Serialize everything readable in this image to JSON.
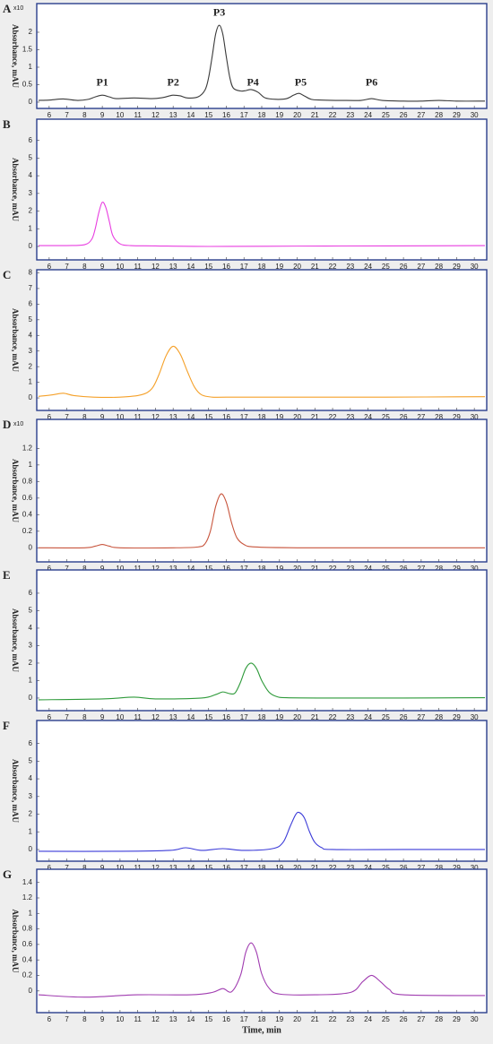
{
  "chart_data": [
    {
      "type": "line",
      "panel": "A",
      "ylabel": "Absorbance, mAU",
      "multiplier": "x10",
      "xlim": [
        5.3,
        30.7
      ],
      "xticks": [
        6,
        7,
        8,
        9,
        10,
        11,
        12,
        13,
        14,
        15,
        16,
        17,
        18,
        19,
        20,
        21,
        22,
        23,
        24,
        25,
        26,
        27,
        28,
        29,
        30
      ],
      "ylim": [
        -0.18,
        2.82
      ],
      "yticks": [
        0,
        0.5,
        1,
        1.5,
        2
      ],
      "annotations": [
        {
          "text": "P1",
          "x": 9.0,
          "y": 0.55
        },
        {
          "text": "P2",
          "x": 13.0,
          "y": 0.55
        },
        {
          "text": "P3",
          "x": 15.6,
          "y": 2.55
        },
        {
          "text": "P4",
          "x": 17.5,
          "y": 0.55
        },
        {
          "text": "P5",
          "x": 20.2,
          "y": 0.55
        },
        {
          "text": "P6",
          "x": 24.2,
          "y": 0.55
        }
      ],
      "series": [
        {
          "color": "#3a3a3a",
          "x": [
            5.4,
            6.0,
            6.8,
            7.6,
            8.2,
            8.6,
            9.0,
            9.4,
            9.8,
            10.8,
            11.8,
            12.4,
            12.8,
            13.0,
            13.4,
            13.8,
            14.4,
            14.8,
            15.0,
            15.2,
            15.4,
            15.6,
            15.8,
            16.0,
            16.2,
            16.4,
            16.8,
            17.1,
            17.4,
            17.8,
            18.2,
            18.8,
            19.4,
            19.8,
            20.1,
            20.4,
            20.8,
            21.4,
            22.5,
            23.6,
            24.2,
            24.8,
            26,
            27,
            28,
            29,
            30.6
          ],
          "values": [
            0.05,
            0.06,
            0.09,
            0.05,
            0.08,
            0.15,
            0.2,
            0.15,
            0.1,
            0.12,
            0.1,
            0.13,
            0.18,
            0.2,
            0.18,
            0.12,
            0.15,
            0.35,
            0.7,
            1.3,
            1.95,
            2.2,
            1.95,
            1.3,
            0.7,
            0.4,
            0.32,
            0.33,
            0.36,
            0.28,
            0.12,
            0.08,
            0.1,
            0.2,
            0.25,
            0.18,
            0.08,
            0.06,
            0.05,
            0.05,
            0.1,
            0.05,
            0.03,
            0.03,
            0.05,
            0.03,
            0.03
          ]
        }
      ]
    },
    {
      "type": "line",
      "panel": "B",
      "ylabel": "Absorbance, mAU",
      "xlim": [
        5.3,
        30.7
      ],
      "xticks": [
        6,
        7,
        8,
        9,
        10,
        11,
        12,
        13,
        14,
        15,
        16,
        17,
        18,
        19,
        20,
        21,
        22,
        23,
        24,
        25,
        26,
        27,
        28,
        29,
        30
      ],
      "ylim": [
        -0.76,
        7.2
      ],
      "yticks": [
        0,
        1,
        2,
        3,
        4,
        5,
        6
      ],
      "series": [
        {
          "color": "#e83ee0",
          "x": [
            5.4,
            7.0,
            8.0,
            8.4,
            8.6,
            8.8,
            9.0,
            9.2,
            9.4,
            9.6,
            10.0,
            10.6,
            12,
            15,
            20,
            25,
            30.6
          ],
          "values": [
            0.05,
            0.05,
            0.1,
            0.4,
            1.0,
            1.9,
            2.5,
            2.2,
            1.4,
            0.6,
            0.15,
            0.05,
            0.03,
            0.0,
            0.02,
            0.03,
            0.05
          ]
        }
      ]
    },
    {
      "type": "line",
      "panel": "C",
      "ylabel": "Absorbance, mAU",
      "xlim": [
        5.3,
        30.7
      ],
      "xticks": [
        6,
        7,
        8,
        9,
        10,
        11,
        12,
        13,
        14,
        15,
        16,
        17,
        18,
        19,
        20,
        21,
        22,
        23,
        24,
        25,
        26,
        27,
        28,
        29,
        30
      ],
      "ylim": [
        -0.8,
        8.2
      ],
      "yticks": [
        0,
        1,
        2,
        3,
        4,
        5,
        6,
        7,
        8
      ],
      "series": [
        {
          "color": "#f5a12a",
          "x": [
            5.4,
            6.2,
            6.8,
            7.4,
            8.5,
            10,
            11.2,
            11.8,
            12.2,
            12.6,
            13.0,
            13.4,
            13.8,
            14.2,
            14.6,
            15.2,
            16,
            20,
            25,
            30.6
          ],
          "values": [
            0.1,
            0.2,
            0.3,
            0.15,
            0.05,
            0.05,
            0.2,
            0.6,
            1.5,
            2.7,
            3.3,
            2.8,
            1.7,
            0.7,
            0.2,
            0.05,
            0.05,
            0.05,
            0.05,
            0.08
          ]
        }
      ]
    },
    {
      "type": "line",
      "panel": "D",
      "ylabel": "Absorbance, mAU",
      "multiplier": "x10",
      "xlim": [
        5.3,
        30.7
      ],
      "xticks": [
        6,
        7,
        8,
        9,
        10,
        11,
        12,
        13,
        14,
        15,
        16,
        17,
        18,
        19,
        20,
        21,
        22,
        23,
        24,
        25,
        26,
        27,
        28,
        29,
        30
      ],
      "ylim": [
        -0.17,
        1.55
      ],
      "yticks": [
        0,
        0.2,
        0.4,
        0.6,
        0.8,
        1,
        1.2
      ],
      "series": [
        {
          "color": "#c8553d",
          "x": [
            5.4,
            8.0,
            8.6,
            9.0,
            9.4,
            10,
            13,
            14.4,
            14.8,
            15.1,
            15.4,
            15.7,
            16.0,
            16.3,
            16.6,
            17.0,
            17.6,
            20,
            25,
            30.6
          ],
          "values": [
            0,
            0,
            0.02,
            0.04,
            0.02,
            0,
            0,
            0.01,
            0.05,
            0.2,
            0.5,
            0.65,
            0.55,
            0.3,
            0.12,
            0.04,
            0.01,
            0,
            0,
            0
          ]
        }
      ]
    },
    {
      "type": "line",
      "panel": "E",
      "ylabel": "Absorbance, mAU",
      "xlim": [
        5.3,
        30.7
      ],
      "xticks": [
        6,
        7,
        8,
        9,
        10,
        11,
        12,
        13,
        14,
        15,
        16,
        17,
        18,
        19,
        20,
        21,
        22,
        23,
        24,
        25,
        26,
        27,
        28,
        29,
        30
      ],
      "ylim": [
        -0.72,
        7.33
      ],
      "yticks": [
        0,
        1,
        2,
        3,
        4,
        5,
        6
      ],
      "series": [
        {
          "color": "#2e9a3a",
          "x": [
            5.4,
            9,
            10.8,
            12,
            14.6,
            15.4,
            15.8,
            16.2,
            16.5,
            16.8,
            17.1,
            17.4,
            17.7,
            18.0,
            18.4,
            18.8,
            19.4,
            22,
            26,
            30.6
          ],
          "values": [
            -0.1,
            -0.05,
            0.05,
            -0.05,
            0,
            0.2,
            0.35,
            0.25,
            0.3,
            0.9,
            1.7,
            2.0,
            1.7,
            1.0,
            0.35,
            0.1,
            0.02,
            0,
            0,
            0.02
          ]
        }
      ]
    },
    {
      "type": "line",
      "panel": "F",
      "ylabel": "Absorbance, mAU",
      "xlim": [
        5.3,
        30.7
      ],
      "xticks": [
        6,
        7,
        8,
        9,
        10,
        11,
        12,
        13,
        14,
        15,
        16,
        17,
        18,
        19,
        20,
        21,
        22,
        23,
        24,
        25,
        26,
        27,
        28,
        29,
        30
      ],
      "ylim": [
        -0.66,
        7.3
      ],
      "yticks": [
        0,
        1,
        2,
        3,
        4,
        5,
        6
      ],
      "series": [
        {
          "color": "#3b3bd8",
          "x": [
            5.4,
            10,
            12.8,
            13.7,
            14.6,
            15.8,
            17,
            18.6,
            19.2,
            19.6,
            19.9,
            20.1,
            20.4,
            20.7,
            21.0,
            21.4,
            22,
            26,
            30.6
          ],
          "values": [
            -0.1,
            -0.1,
            -0.05,
            0.1,
            -0.05,
            0.05,
            -0.05,
            0.05,
            0.4,
            1.3,
            1.95,
            2.1,
            1.8,
            1.0,
            0.4,
            0.1,
            0,
            0,
            0
          ]
        }
      ]
    },
    {
      "type": "line",
      "panel": "G",
      "ylabel": "Absorbance, mAU",
      "xlabel": "Time, min",
      "xlim": [
        5.3,
        30.7
      ],
      "xticks": [
        6,
        7,
        8,
        9,
        10,
        11,
        12,
        13,
        14,
        15,
        16,
        17,
        18,
        19,
        20,
        21,
        22,
        23,
        24,
        25,
        26,
        27,
        28,
        29,
        30
      ],
      "ylim": [
        -0.28,
        1.57
      ],
      "yticks": [
        0,
        0.2,
        0.4,
        0.6,
        0.8,
        1,
        1.2,
        1.4
      ],
      "series": [
        {
          "color": "#a03cb0",
          "x": [
            5.4,
            8,
            11,
            14,
            15.2,
            15.8,
            16.3,
            16.8,
            17.1,
            17.4,
            17.7,
            18.0,
            18.4,
            19,
            21,
            23,
            23.7,
            24.2,
            24.7,
            25.2,
            26,
            30.6
          ],
          "values": [
            -0.05,
            -0.08,
            -0.05,
            -0.05,
            -0.02,
            0.03,
            -0.01,
            0.2,
            0.5,
            0.62,
            0.5,
            0.22,
            0.04,
            -0.04,
            -0.05,
            -0.02,
            0.12,
            0.2,
            0.12,
            0.02,
            -0.05,
            -0.06
          ]
        }
      ]
    }
  ]
}
